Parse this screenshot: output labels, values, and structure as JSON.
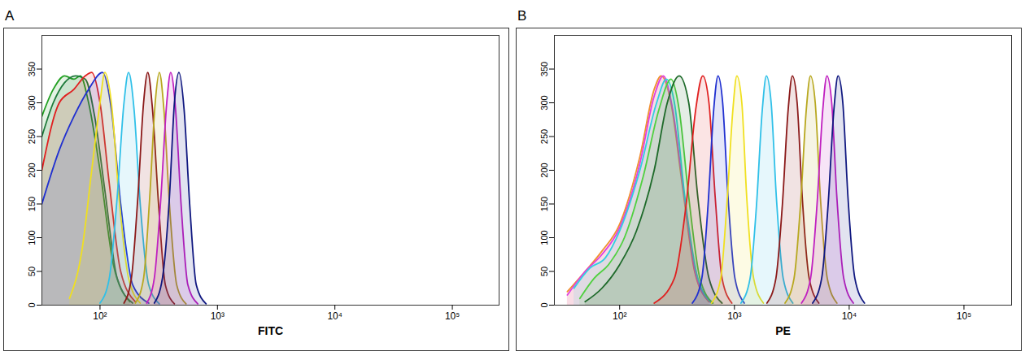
{
  "chart_data": [
    {
      "type": "area",
      "title": "A",
      "x_label": "FITC",
      "log": "x",
      "xlim": [
        32,
        250000
      ],
      "ylim": [
        0,
        400
      ],
      "xticks": [
        {
          "value": 100,
          "label": "10²"
        },
        {
          "value": 1000,
          "label": "10³"
        },
        {
          "value": 10000,
          "label": "10⁴"
        },
        {
          "value": 100000,
          "label": "10⁵"
        }
      ],
      "yticks": [
        0,
        50,
        100,
        150,
        200,
        250,
        300,
        350
      ],
      "series": [
        {
          "color": "#22a022",
          "x": [
            32,
            40,
            50,
            60,
            68,
            80,
            100,
            130,
            180
          ],
          "values": [
            280,
            320,
            340,
            335,
            340,
            300,
            200,
            60,
            5
          ]
        },
        {
          "color": "#1e7a3a",
          "x": [
            32,
            40,
            50,
            62,
            75,
            90,
            110,
            140,
            190
          ],
          "values": [
            250,
            300,
            330,
            340,
            335,
            280,
            170,
            40,
            3
          ]
        },
        {
          "color": "#e02020",
          "x": [
            32,
            45,
            60,
            75,
            85,
            100,
            120,
            150,
            200
          ],
          "values": [
            200,
            300,
            320,
            340,
            345,
            300,
            180,
            50,
            5
          ]
        },
        {
          "color": "#2030d0",
          "x": [
            32,
            45,
            60,
            80,
            105,
            125,
            150,
            190,
            260
          ],
          "values": [
            150,
            230,
            280,
            320,
            345,
            290,
            150,
            30,
            3
          ]
        },
        {
          "color": "#f0e020",
          "x": [
            55,
            70,
            85,
            100,
            110,
            125,
            145,
            175,
            220
          ],
          "values": [
            10,
            80,
            200,
            300,
            345,
            300,
            160,
            40,
            3
          ]
        },
        {
          "color": "#30c0e8",
          "x": [
            100,
            120,
            140,
            160,
            175,
            195,
            220,
            260,
            320
          ],
          "values": [
            3,
            40,
            160,
            300,
            345,
            290,
            150,
            30,
            2
          ]
        },
        {
          "color": "#8b1a1a",
          "x": [
            160,
            185,
            210,
            235,
            255,
            280,
            315,
            360,
            430
          ],
          "values": [
            3,
            40,
            160,
            300,
            345,
            290,
            150,
            30,
            2
          ]
        },
        {
          "color": "#b8a820",
          "x": [
            200,
            235,
            265,
            295,
            320,
            350,
            390,
            450,
            540
          ],
          "values": [
            3,
            40,
            160,
            300,
            345,
            290,
            150,
            30,
            2
          ]
        },
        {
          "color": "#c020c0",
          "x": [
            250,
            290,
            330,
            370,
            400,
            440,
            490,
            560,
            680
          ],
          "values": [
            3,
            40,
            160,
            300,
            345,
            290,
            150,
            30,
            2
          ]
        },
        {
          "color": "#101880",
          "x": [
            290,
            340,
            390,
            430,
            470,
            520,
            580,
            660,
            800
          ],
          "values": [
            3,
            40,
            160,
            300,
            345,
            290,
            150,
            30,
            2
          ]
        }
      ]
    },
    {
      "type": "area",
      "title": "B",
      "x_label": "PE",
      "log": "x",
      "xlim": [
        27,
        260000
      ],
      "ylim": [
        0,
        400
      ],
      "xticks": [
        {
          "value": 100,
          "label": "10²"
        },
        {
          "value": 1000,
          "label": "10³"
        },
        {
          "value": 10000,
          "label": "10⁴"
        },
        {
          "value": 100000,
          "label": "10⁵"
        }
      ],
      "yticks": [
        0,
        50,
        100,
        150,
        200,
        250,
        300,
        350
      ],
      "series": [
        {
          "color": "#f09030",
          "x": [
            35,
            50,
            70,
            100,
            150,
            200,
            230,
            280,
            350,
            450,
            600
          ],
          "values": [
            20,
            50,
            80,
            120,
            220,
            320,
            340,
            300,
            180,
            50,
            5
          ]
        },
        {
          "color": "#e040e0",
          "x": [
            35,
            50,
            70,
            100,
            150,
            200,
            240,
            290,
            360,
            460,
            620
          ],
          "values": [
            15,
            50,
            75,
            115,
            210,
            310,
            340,
            290,
            170,
            45,
            4
          ]
        },
        {
          "color": "#30d0e0",
          "x": [
            40,
            55,
            75,
            100,
            150,
            210,
            255,
            300,
            370,
            480,
            640
          ],
          "values": [
            25,
            55,
            70,
            110,
            200,
            300,
            335,
            300,
            160,
            40,
            3
          ]
        },
        {
          "color": "#50d040",
          "x": [
            45,
            60,
            80,
            110,
            160,
            220,
            280,
            330,
            400,
            500,
            650
          ],
          "values": [
            10,
            40,
            60,
            100,
            190,
            290,
            335,
            290,
            160,
            40,
            3
          ]
        },
        {
          "color": "#1e6a2a",
          "x": [
            50,
            70,
            100,
            140,
            200,
            260,
            330,
            400,
            480,
            600,
            780
          ],
          "values": [
            5,
            25,
            60,
            110,
            200,
            300,
            340,
            300,
            160,
            40,
            3
          ]
        },
        {
          "color": "#e02020",
          "x": [
            200,
            300,
            380,
            460,
            530,
            600,
            680,
            780,
            950
          ],
          "values": [
            3,
            40,
            150,
            290,
            340,
            300,
            160,
            40,
            3
          ]
        },
        {
          "color": "#2030d0",
          "x": [
            430,
            520,
            590,
            660,
            720,
            790,
            880,
            1010,
            1220
          ],
          "values": [
            3,
            40,
            150,
            290,
            340,
            300,
            160,
            40,
            3
          ]
        },
        {
          "color": "#f0e020",
          "x": [
            630,
            760,
            860,
            970,
            1050,
            1160,
            1280,
            1470,
            1790
          ],
          "values": [
            3,
            40,
            150,
            290,
            340,
            300,
            160,
            40,
            3
          ]
        },
        {
          "color": "#30c0e8",
          "x": [
            1140,
            1370,
            1560,
            1750,
            1900,
            2090,
            2320,
            2660,
            3230
          ],
          "values": [
            3,
            40,
            150,
            290,
            340,
            300,
            160,
            40,
            3
          ]
        },
        {
          "color": "#8b1a1a",
          "x": [
            1920,
            2300,
            2620,
            2940,
            3200,
            3520,
            3900,
            4480,
            5440
          ],
          "values": [
            3,
            40,
            150,
            290,
            340,
            300,
            160,
            40,
            3
          ]
        },
        {
          "color": "#b8a820",
          "x": [
            2760,
            3310,
            3770,
            4230,
            4600,
            5060,
            5610,
            6440,
            7820
          ],
          "values": [
            3,
            40,
            150,
            290,
            340,
            300,
            160,
            40,
            3
          ]
        },
        {
          "color": "#c020c0",
          "x": [
            3840,
            4610,
            5250,
            5890,
            6400,
            7040,
            7810,
            8960,
            10880
          ],
          "values": [
            3,
            40,
            150,
            290,
            340,
            300,
            160,
            40,
            3
          ]
        },
        {
          "color": "#101880",
          "x": [
            4800,
            5760,
            6560,
            7360,
            8000,
            8800,
            9760,
            11200,
            13600
          ],
          "values": [
            3,
            40,
            150,
            290,
            340,
            300,
            160,
            40,
            3
          ]
        }
      ]
    }
  ]
}
